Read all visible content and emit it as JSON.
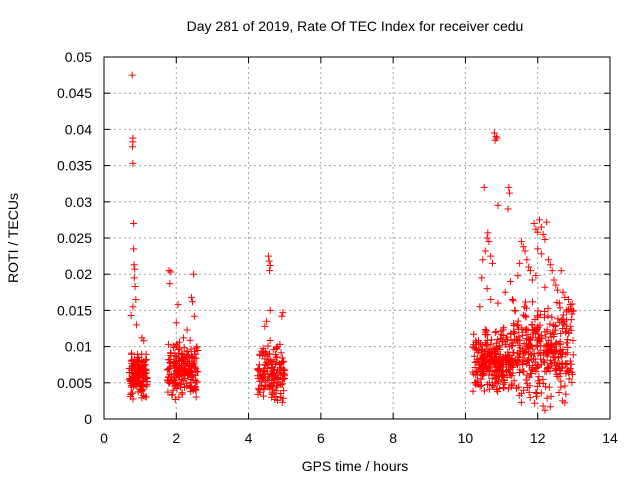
{
  "chart_data": {
    "type": "scatter",
    "title": "Day 281 of 2019, Rate Of TEC Index for receiver cedu",
    "xlabel": "GPS time / hours",
    "ylabel": "ROTI / TECUs",
    "xlim": [
      0,
      14
    ],
    "ylim": [
      0,
      0.05
    ],
    "xticks": [
      "0",
      "2",
      "4",
      "6",
      "8",
      "10",
      "12",
      "14"
    ],
    "yticks": [
      "0",
      "0.005",
      "0.01",
      "0.015",
      "0.02",
      "0.025",
      "0.03",
      "0.035",
      "0.04",
      "0.045",
      "0.05"
    ],
    "grid": true,
    "marker": "plus",
    "color": "#ff0000",
    "clusters": [
      {
        "x_range": [
          0.7,
          1.2
        ],
        "y_range": [
          0.0025,
          0.0095
        ],
        "n": 160
      },
      {
        "x_range": [
          1.75,
          2.6
        ],
        "y_range": [
          0.0025,
          0.011
        ],
        "n": 200
      },
      {
        "x_range": [
          4.25,
          5.0
        ],
        "y_range": [
          0.002,
          0.011
        ],
        "n": 150
      },
      {
        "x_range": [
          10.2,
          11.3
        ],
        "y_range": [
          0.003,
          0.013
        ],
        "n": 260
      },
      {
        "x_range": [
          11.3,
          13.0
        ],
        "y_range": [
          0.002,
          0.017
        ],
        "n": 340
      }
    ],
    "points": [
      {
        "x": 0.78,
        "y": 0.0475
      },
      {
        "x": 0.8,
        "y": 0.0388
      },
      {
        "x": 0.8,
        "y": 0.0383
      },
      {
        "x": 0.79,
        "y": 0.0376
      },
      {
        "x": 0.8,
        "y": 0.0353
      },
      {
        "x": 0.82,
        "y": 0.027
      },
      {
        "x": 0.82,
        "y": 0.0235
      },
      {
        "x": 0.83,
        "y": 0.0213
      },
      {
        "x": 0.85,
        "y": 0.0207
      },
      {
        "x": 0.84,
        "y": 0.0195
      },
      {
        "x": 0.86,
        "y": 0.0183
      },
      {
        "x": 0.88,
        "y": 0.0165
      },
      {
        "x": 0.75,
        "y": 0.0143
      },
      {
        "x": 0.8,
        "y": 0.0155
      },
      {
        "x": 0.9,
        "y": 0.013
      },
      {
        "x": 1.05,
        "y": 0.0112
      },
      {
        "x": 1.1,
        "y": 0.0108
      },
      {
        "x": 1.8,
        "y": 0.0205
      },
      {
        "x": 1.85,
        "y": 0.0203
      },
      {
        "x": 1.82,
        "y": 0.0187
      },
      {
        "x": 2.05,
        "y": 0.0158
      },
      {
        "x": 2.0,
        "y": 0.0133
      },
      {
        "x": 2.2,
        "y": 0.0112
      },
      {
        "x": 2.42,
        "y": 0.0168
      },
      {
        "x": 2.45,
        "y": 0.0162
      },
      {
        "x": 2.48,
        "y": 0.02
      },
      {
        "x": 2.5,
        "y": 0.0142
      },
      {
        "x": 2.3,
        "y": 0.0123
      },
      {
        "x": 4.55,
        "y": 0.0225
      },
      {
        "x": 4.57,
        "y": 0.0218
      },
      {
        "x": 4.6,
        "y": 0.0212
      },
      {
        "x": 4.58,
        "y": 0.0205
      },
      {
        "x": 4.6,
        "y": 0.015
      },
      {
        "x": 4.5,
        "y": 0.0135
      },
      {
        "x": 4.95,
        "y": 0.0147
      },
      {
        "x": 4.92,
        "y": 0.0142
      },
      {
        "x": 4.45,
        "y": 0.0128
      },
      {
        "x": 10.52,
        "y": 0.032
      },
      {
        "x": 10.6,
        "y": 0.025
      },
      {
        "x": 10.62,
        "y": 0.0257
      },
      {
        "x": 10.65,
        "y": 0.0245
      },
      {
        "x": 10.55,
        "y": 0.0232
      },
      {
        "x": 10.7,
        "y": 0.0225
      },
      {
        "x": 10.48,
        "y": 0.022
      },
      {
        "x": 10.75,
        "y": 0.0215
      },
      {
        "x": 10.45,
        "y": 0.0195
      },
      {
        "x": 10.8,
        "y": 0.0395
      },
      {
        "x": 10.85,
        "y": 0.039
      },
      {
        "x": 10.82,
        "y": 0.0385
      },
      {
        "x": 10.87,
        "y": 0.0388
      },
      {
        "x": 10.9,
        "y": 0.0295
      },
      {
        "x": 10.6,
        "y": 0.018
      },
      {
        "x": 10.7,
        "y": 0.0165
      },
      {
        "x": 10.9,
        "y": 0.016
      },
      {
        "x": 10.4,
        "y": 0.0155
      },
      {
        "x": 11.2,
        "y": 0.032
      },
      {
        "x": 11.22,
        "y": 0.0312
      },
      {
        "x": 11.18,
        "y": 0.029
      },
      {
        "x": 11.25,
        "y": 0.019
      },
      {
        "x": 11.1,
        "y": 0.0175
      },
      {
        "x": 11.3,
        "y": 0.0165
      },
      {
        "x": 11.55,
        "y": 0.0245
      },
      {
        "x": 11.6,
        "y": 0.0238
      },
      {
        "x": 11.65,
        "y": 0.0232
      },
      {
        "x": 11.7,
        "y": 0.022
      },
      {
        "x": 11.5,
        "y": 0.0215
      },
      {
        "x": 11.75,
        "y": 0.021
      },
      {
        "x": 11.8,
        "y": 0.0205
      },
      {
        "x": 11.45,
        "y": 0.0198
      },
      {
        "x": 11.85,
        "y": 0.0192
      },
      {
        "x": 11.9,
        "y": 0.027
      },
      {
        "x": 11.95,
        "y": 0.0262
      },
      {
        "x": 12.0,
        "y": 0.0258
      },
      {
        "x": 12.05,
        "y": 0.0275
      },
      {
        "x": 12.1,
        "y": 0.0265
      },
      {
        "x": 12.15,
        "y": 0.0255
      },
      {
        "x": 12.2,
        "y": 0.0248
      },
      {
        "x": 12.25,
        "y": 0.0272
      },
      {
        "x": 12.0,
        "y": 0.0235
      },
      {
        "x": 12.1,
        "y": 0.0228
      },
      {
        "x": 12.3,
        "y": 0.022
      },
      {
        "x": 12.35,
        "y": 0.0213
      },
      {
        "x": 12.4,
        "y": 0.0205
      },
      {
        "x": 11.95,
        "y": 0.0198
      },
      {
        "x": 12.45,
        "y": 0.0192
      },
      {
        "x": 12.5,
        "y": 0.0185
      },
      {
        "x": 12.55,
        "y": 0.0178
      },
      {
        "x": 12.2,
        "y": 0.0182
      },
      {
        "x": 12.65,
        "y": 0.0205
      },
      {
        "x": 12.7,
        "y": 0.0175
      },
      {
        "x": 12.75,
        "y": 0.0168
      },
      {
        "x": 12.85,
        "y": 0.0165
      },
      {
        "x": 12.9,
        "y": 0.0158
      },
      {
        "x": 12.6,
        "y": 0.016
      },
      {
        "x": 12.8,
        "y": 0.0148
      },
      {
        "x": 12.95,
        "y": 0.0145
      },
      {
        "x": 12.15,
        "y": 0.0018
      },
      {
        "x": 12.2,
        "y": 0.0012
      },
      {
        "x": 12.35,
        "y": 0.0017
      }
    ]
  }
}
